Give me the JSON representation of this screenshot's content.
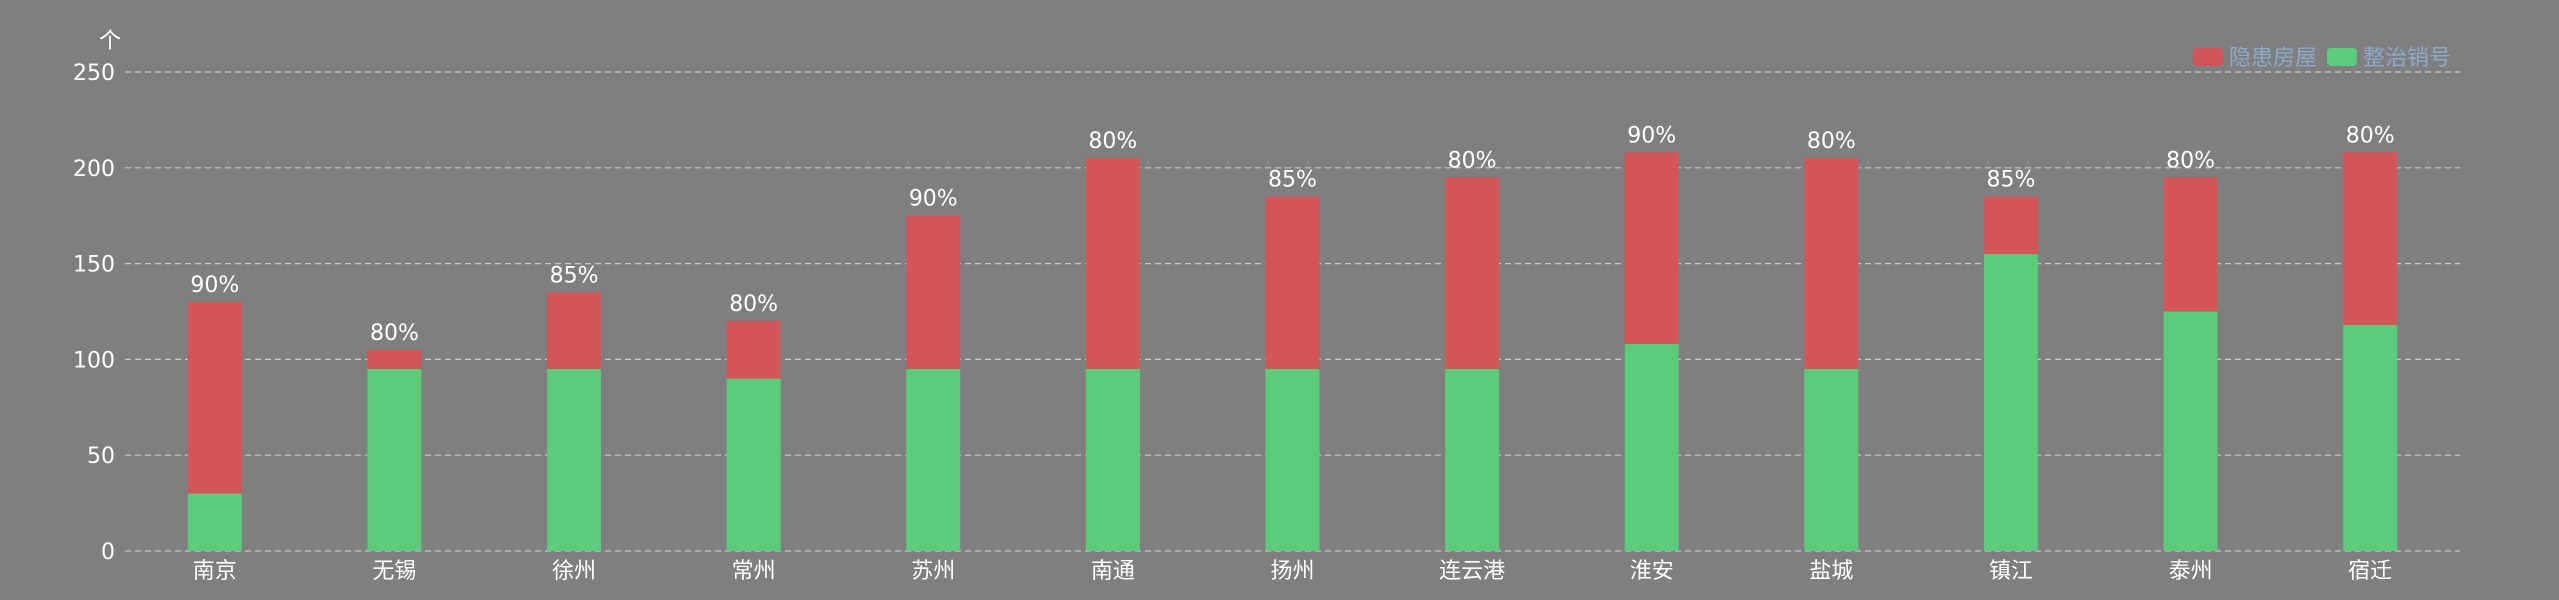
{
  "chart_data": {
    "type": "bar",
    "stacked": true,
    "title": "",
    "ylabel": "个",
    "xlabel": "",
    "ylim": [
      0,
      250
    ],
    "yticks": [
      0,
      50,
      100,
      150,
      200,
      250
    ],
    "grid": true,
    "legend": "top-right",
    "categories": [
      "南京",
      "无锡",
      "徐州",
      "常州",
      "苏州",
      "南通",
      "扬州",
      "连云港",
      "淮安",
      "盐城",
      "镇江",
      "泰州",
      "宿迁"
    ],
    "series": [
      {
        "name": "整治销号",
        "color": "#5ccb7b",
        "values": [
          30,
          95,
          95,
          90,
          95,
          95,
          95,
          95,
          108,
          95,
          155,
          125,
          118
        ]
      },
      {
        "name": "隐患房屋",
        "color": "#d2555a",
        "values": [
          100,
          10,
          40,
          30,
          80,
          110,
          90,
          100,
          100,
          110,
          30,
          70,
          90
        ]
      }
    ],
    "data_labels": [
      "90%",
      "80%",
      "85%",
      "80%",
      "90%",
      "80%",
      "85%",
      "80%",
      "90%",
      "80%",
      "85%",
      "80%",
      "80%"
    ]
  }
}
